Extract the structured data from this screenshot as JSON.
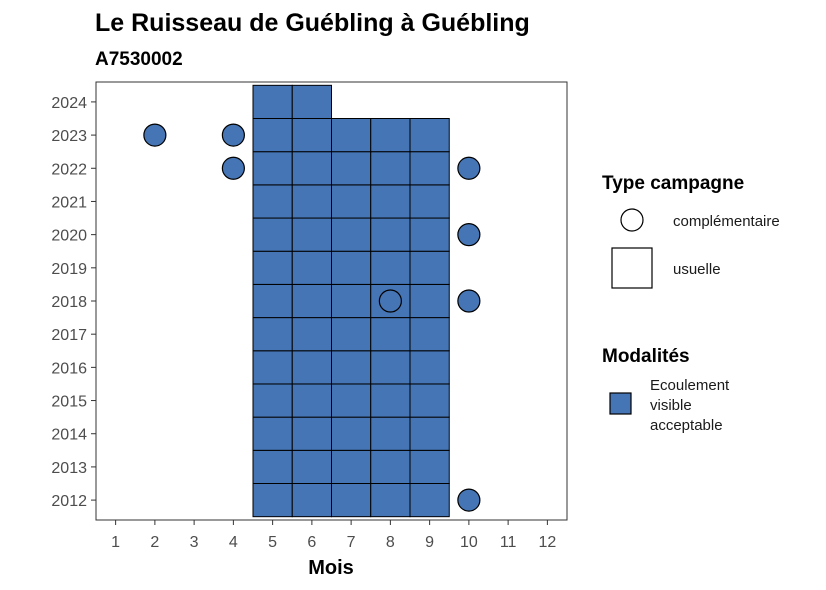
{
  "chart_data": {
    "type": "heatmap",
    "title": "Le Ruisseau de Guébling à Guébling",
    "subtitle": "A7530002",
    "xlabel": "Mois",
    "ylabel": "",
    "x_ticks": [
      1,
      2,
      3,
      4,
      5,
      6,
      7,
      8,
      9,
      10,
      11,
      12
    ],
    "y_ticks": [
      2012,
      2013,
      2014,
      2015,
      2016,
      2017,
      2018,
      2019,
      2020,
      2021,
      2022,
      2023,
      2024
    ],
    "xlim": [
      0.5,
      12.5
    ],
    "ylim": [
      2011.4,
      2024.6
    ],
    "grid": false,
    "fill_color": "#4575b4",
    "shape_legend": {
      "title": "Type campagne",
      "entries": [
        {
          "label": "complémentaire",
          "shape": "circle"
        },
        {
          "label": "usuelle",
          "shape": "square"
        }
      ]
    },
    "fill_legend": {
      "title": "Modalités",
      "entries": [
        {
          "label_lines": [
            "Ecoulement",
            "visible",
            "acceptable"
          ],
          "color": "#4575b4"
        }
      ]
    },
    "usuelle": [
      {
        "year": 2012,
        "months": [
          5,
          6,
          7,
          8,
          9
        ]
      },
      {
        "year": 2013,
        "months": [
          5,
          6,
          7,
          8,
          9
        ]
      },
      {
        "year": 2014,
        "months": [
          5,
          6,
          7,
          8,
          9
        ]
      },
      {
        "year": 2015,
        "months": [
          5,
          6,
          7,
          8,
          9
        ]
      },
      {
        "year": 2016,
        "months": [
          5,
          6,
          7,
          8,
          9
        ]
      },
      {
        "year": 2017,
        "months": [
          5,
          6,
          7,
          8,
          9
        ]
      },
      {
        "year": 2018,
        "months": [
          5,
          6,
          7,
          8,
          9
        ]
      },
      {
        "year": 2019,
        "months": [
          5,
          6,
          7,
          8,
          9
        ]
      },
      {
        "year": 2020,
        "months": [
          5,
          6,
          7,
          8,
          9
        ]
      },
      {
        "year": 2021,
        "months": [
          5,
          6,
          7,
          8,
          9
        ]
      },
      {
        "year": 2022,
        "months": [
          5,
          6,
          7,
          8,
          9
        ]
      },
      {
        "year": 2023,
        "months": [
          5,
          6,
          7,
          8,
          9
        ]
      },
      {
        "year": 2024,
        "months": [
          5,
          6
        ]
      }
    ],
    "complementaire": [
      {
        "month": 2,
        "year": 2023
      },
      {
        "month": 4,
        "year": 2023
      },
      {
        "month": 4,
        "year": 2022
      },
      {
        "month": 10,
        "year": 2022
      },
      {
        "month": 10,
        "year": 2020
      },
      {
        "month": 8,
        "year": 2018
      },
      {
        "month": 10,
        "year": 2018
      },
      {
        "month": 10,
        "year": 2012
      }
    ]
  }
}
